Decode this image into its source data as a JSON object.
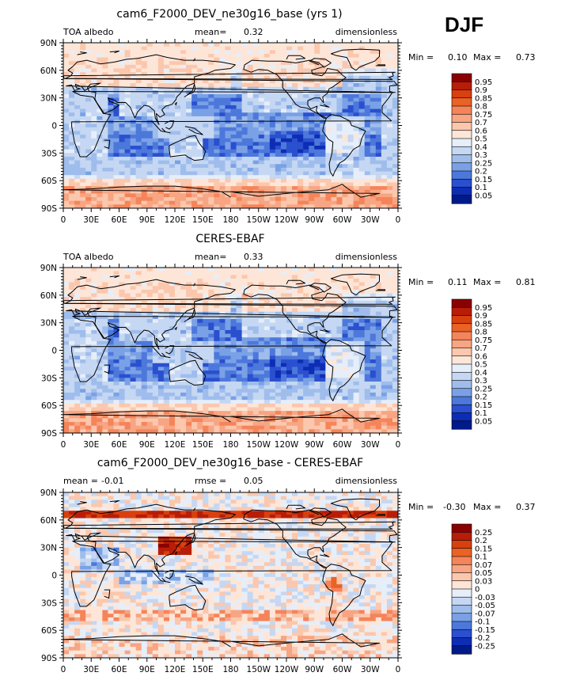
{
  "season_label": "DJF",
  "panels": [
    {
      "title": "cam6_F2000_DEV_ne30g16_base (yrs 1)",
      "left_label": "TOA albedo",
      "mid_label": "mean=",
      "mid_value": "0.32",
      "right_label": "dimensionless",
      "min_label": "Min =",
      "min_value": "0.10",
      "max_label": "Max =",
      "max_value": "0.73",
      "kind": "abs",
      "mean": 0.32,
      "min": 0.1,
      "max": 0.73
    },
    {
      "title": "CERES-EBAF",
      "left_label": "TOA albedo",
      "mid_label": "mean=",
      "mid_value": "0.33",
      "right_label": "dimensionless",
      "min_label": "Min =",
      "min_value": "0.11",
      "max_label": "Max =",
      "max_value": "0.81",
      "kind": "abs",
      "mean": 0.33,
      "min": 0.11,
      "max": 0.81
    },
    {
      "title": "cam6_F2000_DEV_ne30g16_base - CERES-EBAF",
      "left_label": "mean =",
      "left_value": "-0.01",
      "mid_label": "rmse =",
      "mid_value": "0.05",
      "right_label": "dimensionless",
      "min_label": "Min =",
      "min_value": "-0.30",
      "max_label": "Max =",
      "max_value": "0.37",
      "kind": "diff",
      "mean": -0.01,
      "rmse": 0.05,
      "min": -0.3,
      "max": 0.37
    }
  ],
  "lat_ticks": [
    "90N",
    "60N",
    "30N",
    "0",
    "30S",
    "60S",
    "90S"
  ],
  "lon_ticks": [
    "0",
    "30E",
    "60E",
    "90E",
    "120E",
    "150E",
    "180",
    "150W",
    "120W",
    "90W",
    "60W",
    "30W",
    "0"
  ],
  "colorbar_abs": {
    "labels": [
      "0.95",
      "0.9",
      "0.85",
      "0.8",
      "0.75",
      "0.7",
      "0.6",
      "0.5",
      "0.4",
      "0.3",
      "0.25",
      "0.2",
      "0.15",
      "0.1",
      "0.05"
    ],
    "colors": [
      "#8b0000",
      "#b81d07",
      "#d8400f",
      "#ea6224",
      "#f5845a",
      "#f7a583",
      "#fbc7ad",
      "#fde6d8",
      "#e6eefa",
      "#c5d7f2",
      "#9fbdec",
      "#7aa1e6",
      "#4d78db",
      "#2a4fcf",
      "#0d2db4",
      "#001a8a"
    ]
  },
  "colorbar_diff": {
    "labels": [
      "0.25",
      "0.2",
      "0.15",
      "0.1",
      "0.07",
      "0.05",
      "0.03",
      "0",
      "-0.03",
      "-0.05",
      "-0.07",
      "-0.1",
      "-0.15",
      "-0.2",
      "-0.25"
    ],
    "colors": [
      "#8b0000",
      "#b81d07",
      "#d8400f",
      "#ea6224",
      "#f5845a",
      "#f7a583",
      "#fbc7ad",
      "#fde6d8",
      "#e6eefa",
      "#c5d7f2",
      "#9fbdec",
      "#7aa1e6",
      "#4d78db",
      "#2a4fcf",
      "#0d2db4",
      "#001a8a"
    ]
  }
}
